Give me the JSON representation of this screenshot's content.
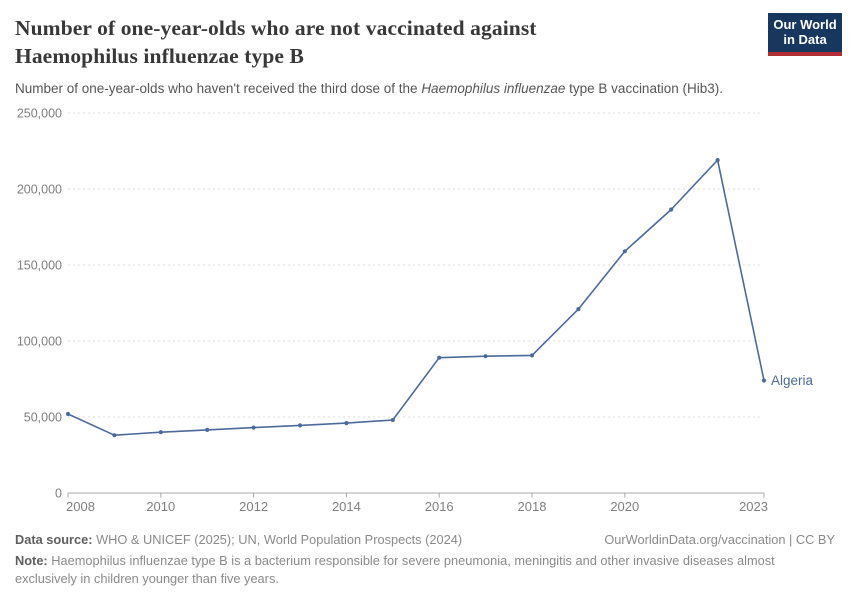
{
  "header": {
    "title": "Number of one-year-olds who are not vaccinated against Haemophilus influenzae type B",
    "subtitle_prefix": "Number of one-year-olds who haven't received the third dose of the ",
    "subtitle_italic": "Haemophilus influenzae",
    "subtitle_suffix": " type B vaccination (Hib3).",
    "logo_line1": "Our World",
    "logo_line2": "in Data"
  },
  "chart_data": {
    "type": "line",
    "title": "Number of one-year-olds who are not vaccinated against Haemophilus influenzae type B",
    "x": [
      2008,
      2009,
      2010,
      2011,
      2012,
      2013,
      2014,
      2015,
      2016,
      2017,
      2018,
      2019,
      2020,
      2021,
      2022,
      2023
    ],
    "series": [
      {
        "name": "Algeria",
        "color": "#4c6a9c",
        "values": [
          52000,
          38000,
          40000,
          41500,
          43000,
          44500,
          46000,
          48000,
          89000,
          90000,
          90500,
          121000,
          159000,
          186500,
          219000,
          74000
        ]
      }
    ],
    "xlim": [
      2008,
      2023
    ],
    "ylim": [
      0,
      250000
    ],
    "yticks": [
      0,
      50000,
      100000,
      150000,
      200000,
      250000
    ],
    "xticks": [
      2008,
      2010,
      2012,
      2014,
      2016,
      2018,
      2020,
      2023
    ],
    "grid": "horizontal-dashed",
    "legend": "end-of-line-label",
    "end_label": "Algeria"
  },
  "footer": {
    "source_label": "Data source:",
    "source_text": " WHO & UNICEF (2025); UN, World Population Prospects (2024)",
    "attribution": "OurWorldinData.org/vaccination | CC BY",
    "note_label": "Note:",
    "note_text": " Haemophilus influenzae type B is a bacterium responsible for severe pneumonia, meningitis and other invasive diseases almost exclusively in children younger than five years."
  },
  "colors": {
    "logo_bg": "#18375f",
    "logo_bar": "#b22d34",
    "grid": "#dedede",
    "axis": "#a8a8a8",
    "tick_text": "#7f7f7f"
  }
}
